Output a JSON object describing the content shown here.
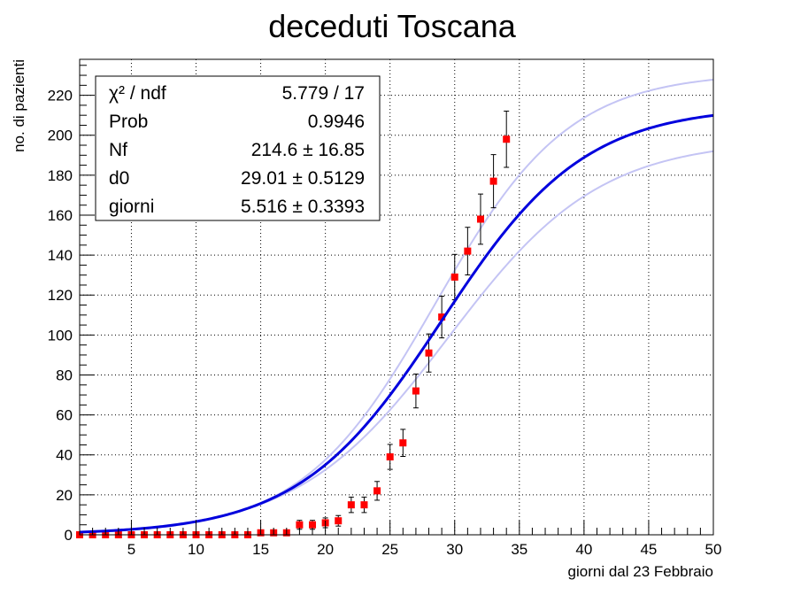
{
  "chart_data": {
    "type": "scatter",
    "title": "deceduti Toscana",
    "xlabel": "giorni dal 23 Febbraio",
    "ylabel": "no. di pazienti",
    "xlim": [
      1,
      50
    ],
    "ylim": [
      0,
      238
    ],
    "x_ticks": [
      5,
      10,
      15,
      20,
      25,
      30,
      35,
      40,
      45,
      50
    ],
    "y_ticks": [
      0,
      20,
      40,
      60,
      80,
      100,
      120,
      140,
      160,
      180,
      200,
      220
    ],
    "grid": true,
    "series": [
      {
        "kind": "points-with-errors",
        "color": "#ff0000",
        "x": [
          1,
          2,
          3,
          4,
          5,
          6,
          7,
          8,
          9,
          10,
          11,
          12,
          13,
          14,
          15,
          16,
          17,
          18,
          19,
          20,
          21,
          22,
          23,
          24,
          25,
          26,
          27,
          28,
          29,
          30,
          31,
          32,
          33,
          34
        ],
        "y": [
          0,
          0,
          0,
          0,
          0,
          0,
          0,
          0,
          0,
          0,
          0,
          0,
          0,
          0,
          1,
          1,
          1,
          5,
          5,
          6,
          7,
          15,
          15,
          22,
          39,
          46,
          72,
          91,
          109,
          129,
          142,
          158,
          177,
          198
        ]
      },
      {
        "kind": "fit",
        "color": "#0000dd",
        "model": "Nf / (1 + exp(-(x - d0) / giorni))",
        "Nf": 214.6,
        "d0": 29.01,
        "giorni": 5.516
      },
      {
        "kind": "fit-band-upper",
        "color": "#c4c4f4",
        "Nf": 231.4,
        "d0": 28.5,
        "giorni": 5.18
      },
      {
        "kind": "fit-band-lower",
        "color": "#c4c4f4",
        "Nf": 197.8,
        "d0": 29.52,
        "giorni": 5.86
      }
    ],
    "stats_box": {
      "placement": "top-left",
      "rows": [
        {
          "label": "χ² / ndf",
          "value": "5.779 / 17"
        },
        {
          "label": "Prob",
          "value": "0.9946"
        },
        {
          "label": "Nf",
          "value": "214.6 ± 16.85"
        },
        {
          "label": "d0",
          "value": "29.01 ± 0.5129"
        },
        {
          "label": "giorni",
          "value": "5.516 ± 0.3393"
        }
      ]
    }
  }
}
